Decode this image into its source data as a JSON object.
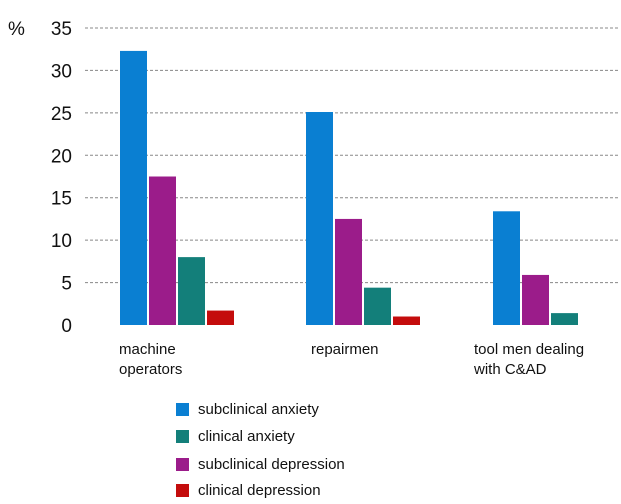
{
  "chart_data": {
    "type": "bar",
    "title": "",
    "xlabel": "",
    "ylabel": "%",
    "ylim": [
      0,
      35
    ],
    "yticks": [
      0,
      5,
      10,
      15,
      20,
      25,
      30,
      35
    ],
    "grid": true,
    "legend_position": "bottom",
    "categories": [
      [
        "machine",
        "operators"
      ],
      [
        "repairmen"
      ],
      [
        "tool men dealing",
        "with C&AD"
      ]
    ],
    "series": [
      {
        "name": "subclinical anxiety",
        "color": "#0a7fd2",
        "values": [
          32.3,
          25.1,
          13.4
        ]
      },
      {
        "name": "clinical anxiety",
        "color": "#137f7a",
        "values": [
          8.0,
          4.4,
          1.4
        ]
      },
      {
        "name": "subclinical depression",
        "color": "#9b1c8a",
        "values": [
          17.5,
          12.5,
          5.9
        ]
      },
      {
        "name": "clinical depression",
        "color": "#c40c0c",
        "values": [
          1.7,
          1.0,
          0
        ]
      }
    ],
    "series_order_in_groups": [
      "subclinical anxiety",
      "subclinical depression",
      "clinical anxiety",
      "clinical depression"
    ]
  }
}
